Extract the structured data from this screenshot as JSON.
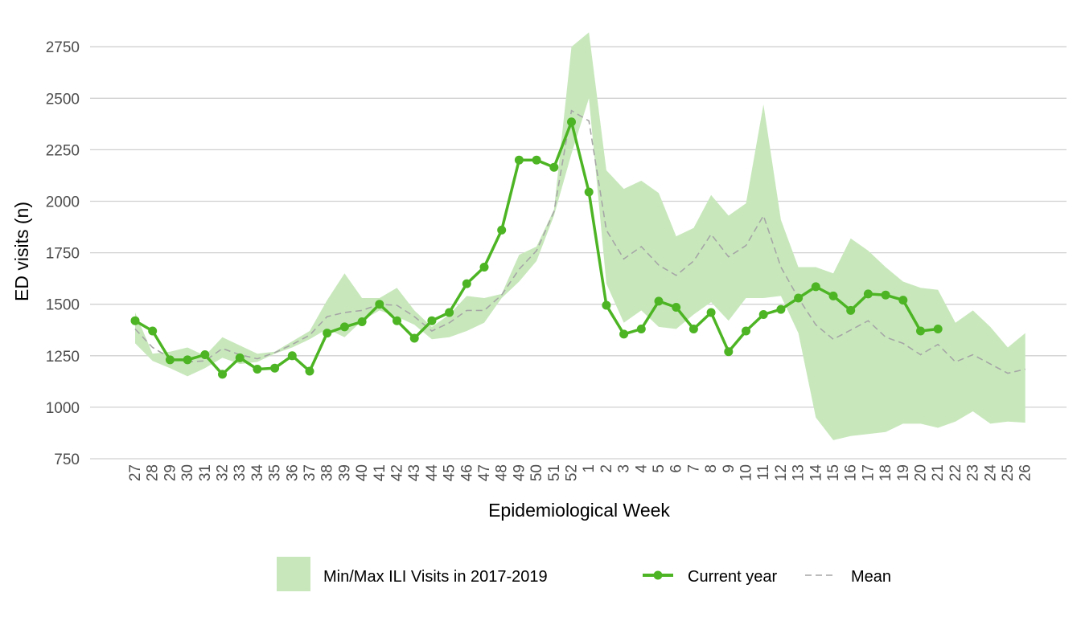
{
  "chart_data": {
    "type": "line",
    "xlabel": "Epidemiological Week",
    "ylabel": "ED visits (n)",
    "ylim": [
      750,
      2800
    ],
    "yticks": [
      750,
      1000,
      1250,
      1500,
      1750,
      2000,
      2250,
      2500,
      2750
    ],
    "grid": "horizontal",
    "legend_position": "bottom",
    "categories": [
      "27",
      "28",
      "29",
      "30",
      "31",
      "32",
      "33",
      "34",
      "35",
      "36",
      "37",
      "38",
      "39",
      "40",
      "41",
      "42",
      "43",
      "44",
      "45",
      "46",
      "47",
      "48",
      "49",
      "50",
      "51",
      "52",
      "1",
      "2",
      "3",
      "4",
      "5",
      "6",
      "7",
      "8",
      "9",
      "10",
      "11",
      "12",
      "13",
      "14",
      "15",
      "16",
      "17",
      "18",
      "19",
      "20",
      "21",
      "22",
      "23",
      "24",
      "25",
      "26"
    ],
    "band": {
      "name": "Min/Max ILI Visits in 2017-2019",
      "color": "#c8e8bc",
      "min": [
        1310,
        1225,
        1190,
        1150,
        1190,
        1240,
        1210,
        1220,
        1260,
        1290,
        1330,
        1380,
        1340,
        1420,
        1470,
        1440,
        1400,
        1330,
        1340,
        1370,
        1410,
        1530,
        1610,
        1710,
        1930,
        2230,
        2500,
        1600,
        1410,
        1470,
        1390,
        1380,
        1450,
        1510,
        1420,
        1530,
        1530,
        1540,
        1360,
        950,
        840,
        860,
        870,
        880,
        920,
        920,
        900,
        930,
        980,
        920,
        930,
        925
      ],
      "max": [
        1460,
        1260,
        1270,
        1290,
        1250,
        1340,
        1300,
        1260,
        1270,
        1320,
        1370,
        1520,
        1650,
        1530,
        1530,
        1580,
        1470,
        1390,
        1450,
        1540,
        1530,
        1550,
        1740,
        1780,
        1960,
        2750,
        2820,
        2150,
        2060,
        2100,
        2040,
        1830,
        1870,
        2030,
        1930,
        1990,
        2470,
        1910,
        1680,
        1680,
        1650,
        1820,
        1760,
        1680,
        1610,
        1580,
        1570,
        1410,
        1470,
        1390,
        1290,
        1360
      ]
    },
    "series": [
      {
        "name": "Current year",
        "color": "#4db524",
        "values": [
          1420,
          1370,
          1230,
          1230,
          1255,
          1160,
          1240,
          1185,
          1190,
          1250,
          1175,
          1360,
          1390,
          1415,
          1500,
          1420,
          1335,
          1420,
          1460,
          1600,
          1680,
          1860,
          2200,
          2200,
          2165,
          2385,
          2045,
          1495,
          1355,
          1380,
          1515,
          1485,
          1380,
          1460,
          1270,
          1370,
          1450,
          1475,
          1530,
          1585,
          1540,
          1470,
          1550,
          1545,
          1520,
          1370,
          1380,
          null,
          null,
          null,
          null,
          null
        ]
      },
      {
        "name": "Mean",
        "color": "#a6a6a6",
        "values": [
          1380,
          1290,
          1240,
          1220,
          1225,
          1285,
          1255,
          1235,
          1265,
          1305,
          1350,
          1440,
          1460,
          1470,
          1500,
          1495,
          1440,
          1370,
          1410,
          1470,
          1470,
          1545,
          1670,
          1760,
          1950,
          2440,
          2390,
          1860,
          1720,
          1780,
          1690,
          1640,
          1710,
          1840,
          1730,
          1785,
          1930,
          1680,
          1530,
          1400,
          1330,
          1375,
          1420,
          1340,
          1310,
          1255,
          1305,
          1220,
          1255,
          1210,
          1165,
          1185
        ]
      }
    ]
  }
}
